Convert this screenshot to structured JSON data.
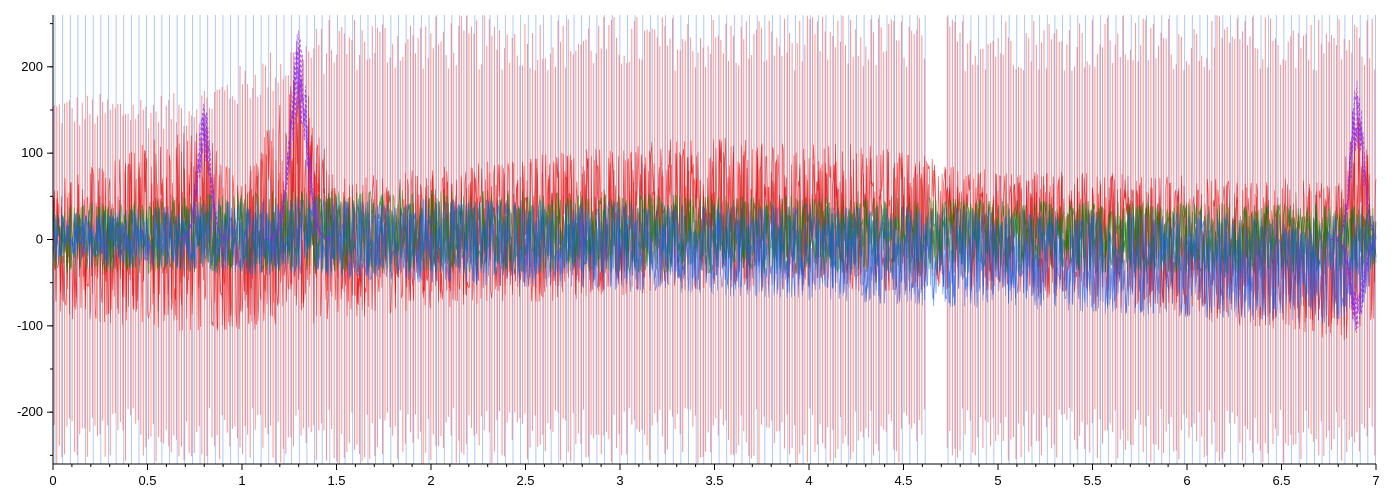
{
  "chart_data": {
    "type": "line",
    "title": "",
    "xlabel": "",
    "ylabel": "",
    "xlim": [
      0,
      7
    ],
    "ylim": [
      -260,
      260
    ],
    "x_ticks": [
      0,
      0.5,
      1,
      1.5,
      2,
      2.5,
      3,
      3.5,
      4,
      4.5,
      5,
      5.5,
      6,
      6.5,
      7
    ],
    "x_tick_labels": [
      "0",
      "0.5",
      "1",
      "1.5",
      "2",
      "2.5",
      "3",
      "3.5",
      "4",
      "4.5",
      "5",
      "5.5",
      "6",
      "6.5",
      "7"
    ],
    "y_ticks": [
      200,
      100,
      0,
      -100,
      -200
    ],
    "y_tick_labels": [
      "200",
      "100",
      "0",
      "-100",
      "-200"
    ],
    "grid": false,
    "legend": "none",
    "series_colors": [
      "#e00000",
      "#ff8080",
      "#1a5fe6",
      "#3344cc",
      "#8a2be2",
      "#008000",
      "#8b0000",
      "#6ea0ff"
    ],
    "series": [
      {
        "name": "",
        "color": "#ff8080",
        "role": "spikes-light-red",
        "envelope_upper": [
          [
            0,
            170
          ],
          [
            0.7,
            170
          ],
          [
            1.5,
            260
          ],
          [
            7,
            260
          ]
        ],
        "envelope_lower": [
          [
            0,
            -260
          ],
          [
            7,
            -260
          ]
        ]
      },
      {
        "name": "",
        "color": "#6ea0ff",
        "role": "spikes-light-blue",
        "envelope_upper": [
          [
            0,
            260
          ],
          [
            7,
            260
          ]
        ],
        "envelope_lower": [
          [
            0,
            -260
          ],
          [
            7,
            -260
          ]
        ]
      },
      {
        "name": "",
        "color": "#e00000",
        "role": "band-red",
        "envelope_upper": [
          [
            0,
            70
          ],
          [
            0.8,
            140
          ],
          [
            1.0,
            70
          ],
          [
            1.3,
            200
          ],
          [
            1.5,
            70
          ],
          [
            3.4,
            120
          ],
          [
            4.3,
            110
          ],
          [
            5,
            80
          ],
          [
            6.8,
            70
          ],
          [
            6.9,
            150
          ],
          [
            7,
            70
          ]
        ],
        "envelope_lower": [
          [
            0,
            -90
          ],
          [
            0.8,
            -110
          ],
          [
            1.3,
            -100
          ],
          [
            2,
            -80
          ],
          [
            3.5,
            -60
          ],
          [
            5,
            -60
          ],
          [
            6.9,
            -120
          ],
          [
            7,
            -90
          ]
        ]
      },
      {
        "name": "",
        "color": "#008000",
        "role": "band-green",
        "envelope_upper": [
          [
            0,
            40
          ],
          [
            1.3,
            60
          ],
          [
            7,
            40
          ]
        ],
        "envelope_lower": [
          [
            0,
            -40
          ],
          [
            7,
            -40
          ]
        ]
      },
      {
        "name": "",
        "color": "#1a5fe6",
        "role": "band-blue",
        "envelope_upper": [
          [
            0,
            30
          ],
          [
            1.3,
            50
          ],
          [
            4.3,
            40
          ],
          [
            7,
            30
          ]
        ],
        "envelope_lower": [
          [
            0,
            -30
          ],
          [
            6.9,
            -100
          ],
          [
            7,
            -30
          ]
        ]
      },
      {
        "name": "",
        "color": "#8a2be2",
        "role": "peaks-purple",
        "envelope_upper": [
          [
            0.8,
            170
          ],
          [
            1.3,
            260
          ],
          [
            6.9,
            200
          ]
        ],
        "envelope_lower": [
          [
            6.9,
            -110
          ]
        ]
      }
    ]
  }
}
